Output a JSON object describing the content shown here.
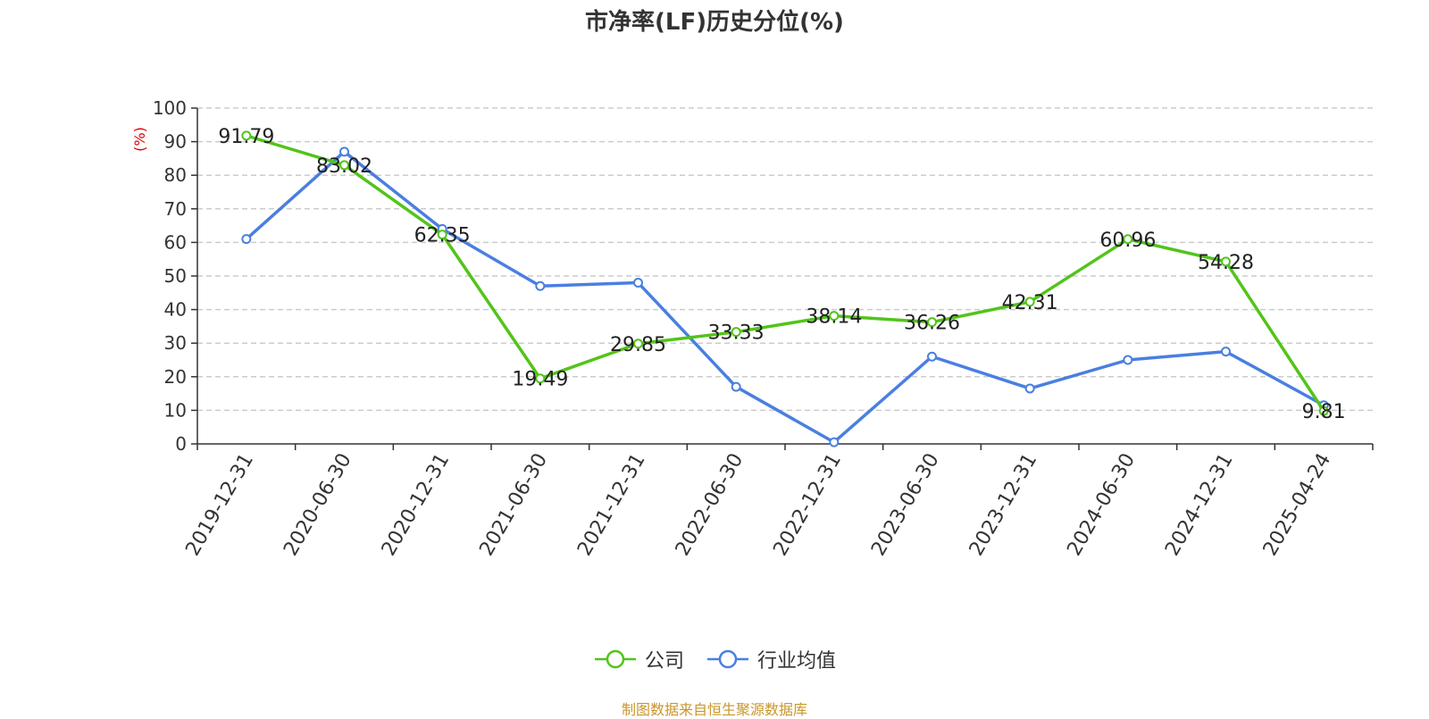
{
  "chart_data": {
    "type": "line",
    "title": "市净率(LF)历史分位(%)",
    "ylabel": "(%)",
    "ylim": [
      0,
      100
    ],
    "yticks": [
      "0",
      "10",
      "20",
      "30",
      "40",
      "50",
      "60",
      "70",
      "80",
      "90",
      "100"
    ],
    "categories": [
      "2019-12-31",
      "2020-06-30",
      "2020-12-31",
      "2021-06-30",
      "2021-12-31",
      "2022-06-30",
      "2022-12-31",
      "2023-06-30",
      "2023-12-31",
      "2024-06-30",
      "2024-12-31",
      "2025-04-24"
    ],
    "series": [
      {
        "name": "公司",
        "color": "#52c41a",
        "values": [
          91.79,
          83.02,
          62.35,
          19.49,
          29.85,
          33.33,
          38.14,
          36.26,
          42.31,
          60.96,
          54.28,
          9.81
        ],
        "labels": [
          "91.79",
          "83.02",
          "62.35",
          "19.49",
          "29.85",
          "33.33",
          "38.14",
          "36.26",
          "42.31",
          "60.96",
          "54.28",
          "9.81"
        ]
      },
      {
        "name": "行业均值",
        "color": "#4a7fe0",
        "values": [
          61,
          87,
          64,
          47,
          48,
          17,
          0.5,
          26,
          16.5,
          25,
          27.5,
          11.5
        ]
      }
    ],
    "grid": true,
    "legend_position": "bottom"
  },
  "source": "制图数据来自恒生聚源数据库"
}
